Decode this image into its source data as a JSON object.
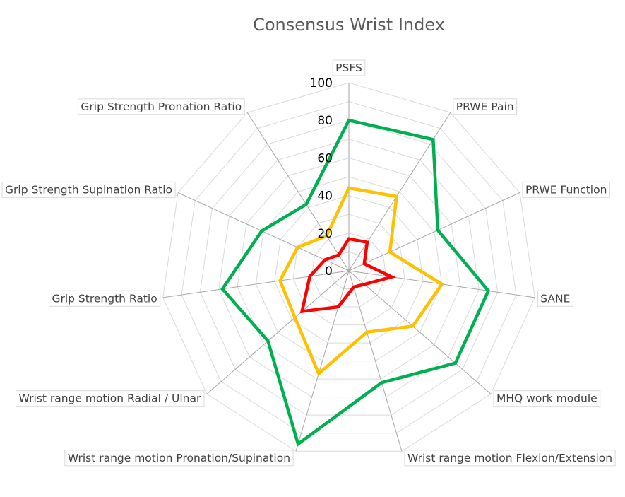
{
  "chart_data": {
    "type": "radar",
    "title": "Consensus Wrist Index",
    "categories": [
      "PSFS",
      "PRWE Pain",
      "PRWE Function",
      "SANE",
      "MHQ work module",
      "Wrist range motion Flexion/Extension",
      "Wrist range motion Pronation/Supination",
      "Wrist range motion Radial / Ulnar",
      "Grip Strength Ratio",
      "Grip Strength  Supination Ratio",
      "Grip Strength  Pronation Ratio"
    ],
    "rlim": [
      0,
      100
    ],
    "ticks": [
      "0",
      "20",
      "40",
      "60",
      "80",
      "100"
    ],
    "tick_values": [
      0,
      20,
      40,
      60,
      80,
      100
    ],
    "grid": true,
    "legend": "none",
    "series": [
      {
        "color": "#00b050",
        "values": [
          80,
          83,
          52,
          75,
          75,
          62,
          96,
          57,
          68,
          51,
          42
        ]
      },
      {
        "color": "#ffc000",
        "values": [
          44,
          47,
          24,
          50,
          45,
          34,
          57,
          38,
          37,
          30,
          22
        ]
      },
      {
        "color": "#ff0000",
        "values": [
          17,
          18,
          9,
          23,
          11,
          9,
          20,
          33,
          21,
          14,
          10
        ]
      }
    ]
  }
}
